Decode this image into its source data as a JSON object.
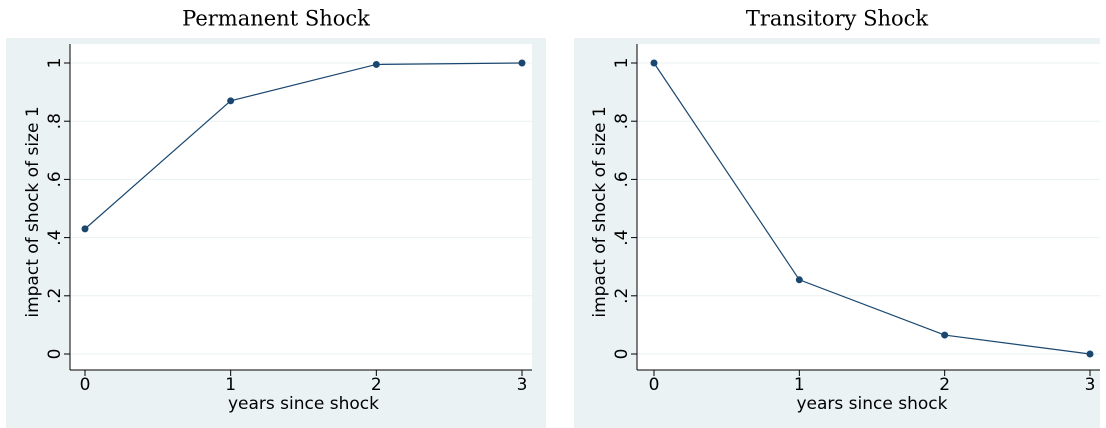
{
  "chart_data": [
    {
      "type": "line",
      "title": "Permanent Shock",
      "xlabel": "years since shock",
      "ylabel": "impact of shock of size 1",
      "x": [
        0,
        1,
        2,
        3
      ],
      "values": [
        0.43,
        0.87,
        0.995,
        1.0
      ],
      "color": "#1a476f",
      "xlim": [
        0,
        3
      ],
      "ylim": [
        0,
        1
      ],
      "xticks": [
        0,
        1,
        2,
        3
      ],
      "yticks": [
        0,
        {
          "value": 0.2,
          "label": ".2"
        },
        {
          "value": 0.4,
          "label": ".4"
        },
        {
          "value": 0.6,
          "label": ".6"
        },
        {
          "value": 0.8,
          "label": ".8"
        },
        1
      ],
      "grid": true
    },
    {
      "type": "line",
      "title": "Transitory Shock",
      "xlabel": "years since shock",
      "ylabel": "impact of shock of size 1",
      "x": [
        0,
        1,
        2,
        3
      ],
      "values": [
        1.0,
        0.255,
        0.065,
        0.0
      ],
      "color": "#1a476f",
      "xlim": [
        0,
        3
      ],
      "ylim": [
        0,
        1
      ],
      "xticks": [
        0,
        1,
        2,
        3
      ],
      "yticks": [
        0,
        {
          "value": 0.2,
          "label": ".2"
        },
        {
          "value": 0.4,
          "label": ".4"
        },
        {
          "value": 0.6,
          "label": ".6"
        },
        {
          "value": 0.8,
          "label": ".8"
        },
        1
      ],
      "grid": true
    }
  ]
}
